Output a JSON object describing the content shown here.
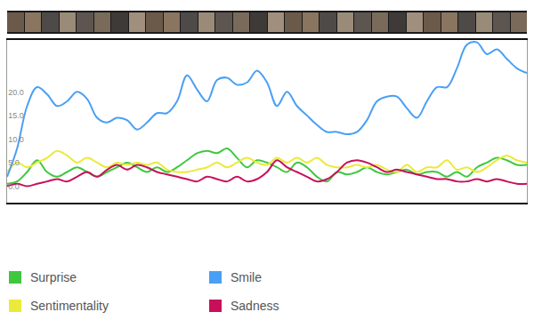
{
  "chart_data": {
    "type": "line",
    "categories": [
      null,
      null,
      null,
      null,
      null,
      null,
      null,
      null,
      null,
      null,
      null,
      null,
      null,
      null,
      null,
      null,
      null,
      null,
      null,
      null,
      null,
      null,
      null,
      null,
      null,
      null,
      null,
      null,
      null,
      null,
      null,
      null,
      null,
      null,
      null,
      null,
      null,
      null,
      null,
      null,
      null,
      null,
      null,
      null,
      null,
      null,
      null,
      null,
      null,
      null,
      null,
      null,
      null
    ],
    "series": [
      {
        "name": "Surprise",
        "color": "#3fc83f",
        "values": [
          0.5,
          1,
          3,
          5.5,
          3,
          2,
          3,
          4,
          3,
          2,
          3,
          4,
          5,
          4,
          3,
          4,
          3,
          4,
          5.5,
          7,
          7.5,
          7,
          8,
          6,
          4,
          5.5,
          5,
          4,
          3,
          5,
          4,
          2,
          1,
          3,
          2.5,
          3,
          4,
          3,
          2.5,
          3,
          3.5,
          2.5,
          3,
          3,
          2,
          3,
          2,
          4,
          5,
          6,
          5.5,
          4.5,
          4.5
        ]
      },
      {
        "name": "Sentimentality",
        "color": "#eaea3a",
        "values": [
          3,
          5,
          4,
          5,
          6,
          7.5,
          6.5,
          5,
          6,
          5,
          4,
          5,
          4.5,
          5,
          4.5,
          5,
          3.5,
          3,
          3,
          3.5,
          4,
          5,
          4,
          5,
          6,
          5,
          4.5,
          6,
          5,
          6,
          5,
          6,
          4.5,
          4,
          4,
          4.5,
          4,
          4.5,
          3.5,
          3,
          4.5,
          3,
          4,
          4,
          5.5,
          3.5,
          4,
          3,
          4,
          5.5,
          6.5,
          5.5,
          5
        ]
      },
      {
        "name": "Smile",
        "color": "#4a9ff5",
        "values": [
          2,
          8,
          17,
          21,
          19.5,
          17,
          18,
          20,
          18.5,
          14.5,
          13.5,
          14.5,
          14,
          12,
          13.5,
          15.5,
          15.5,
          18,
          23.5,
          20.5,
          18,
          22.5,
          23,
          21.5,
          22,
          24.5,
          22,
          17,
          20,
          17,
          15,
          13,
          11.5,
          11.5,
          11,
          11.5,
          14,
          18,
          19,
          19,
          16.5,
          14.5,
          18,
          21,
          21,
          25,
          30,
          30.5,
          28,
          29,
          27,
          25,
          24
        ]
      },
      {
        "name": "Sadness",
        "color": "#c8105a",
        "values": [
          0,
          0.5,
          0,
          0.5,
          1,
          1.5,
          1,
          2,
          3,
          2,
          3.5,
          4.5,
          3.5,
          4.5,
          4,
          3,
          2.5,
          2,
          1.5,
          1,
          2,
          1.5,
          1,
          2,
          1,
          1.5,
          3,
          5.5,
          4,
          3,
          2,
          1,
          1.5,
          3,
          5,
          5.5,
          5,
          4,
          3,
          3.5,
          3,
          2.5,
          2,
          1.5,
          1.5,
          1,
          1,
          1.5,
          1,
          1.5,
          1,
          0.5,
          0.5
        ]
      }
    ],
    "ylim": [
      -3.5,
      31
    ],
    "yticks": [
      {
        "value": 0,
        "label": "0.0"
      },
      {
        "value": 5,
        "label": "5.0"
      },
      {
        "value": 10,
        "label": "10.0"
      },
      {
        "value": 15,
        "label": "15.0"
      },
      {
        "value": 20,
        "label": "20.0"
      }
    ],
    "grid": false,
    "tick_labels": "y",
    "legend": "bottom"
  }
}
